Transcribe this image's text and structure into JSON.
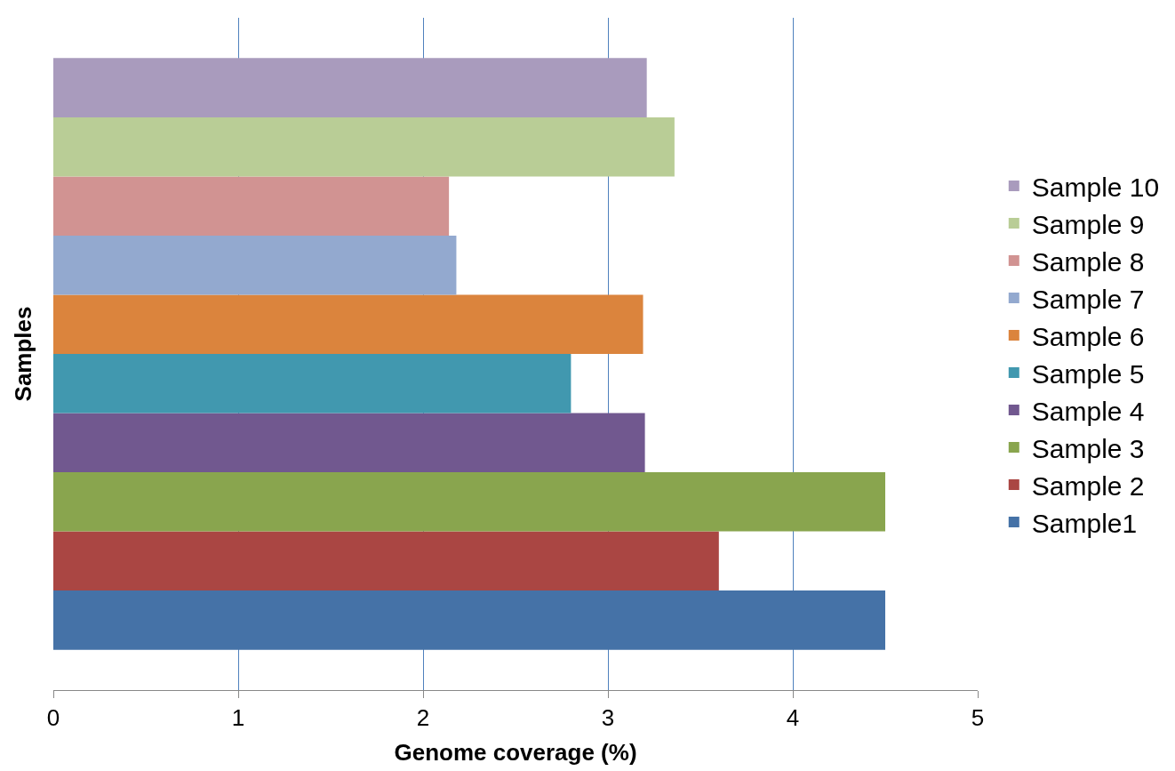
{
  "chart_data": {
    "type": "bar",
    "orientation": "horizontal",
    "xlabel": "Genome coverage (%)",
    "ylabel": "Samples",
    "categories": [
      null
    ],
    "series": [
      {
        "name": "Sample1",
        "color": "#4572a7",
        "values": [
          4.5
        ]
      },
      {
        "name": "Sample 2",
        "color": "#aa4643",
        "values": [
          3.6
        ]
      },
      {
        "name": "Sample 3",
        "color": "#89a54e",
        "values": [
          4.5
        ]
      },
      {
        "name": "Sample 4",
        "color": "#71588f",
        "values": [
          3.2
        ]
      },
      {
        "name": "Sample 5",
        "color": "#4198af",
        "values": [
          2.8
        ]
      },
      {
        "name": "Sample 6",
        "color": "#db843d",
        "values": [
          3.19
        ]
      },
      {
        "name": "Sample 7",
        "color": "#93a9cf",
        "values": [
          2.18
        ]
      },
      {
        "name": "Sample 8",
        "color": "#d19392",
        "values": [
          2.14
        ]
      },
      {
        "name": "Sample 9",
        "color": "#b9cd96",
        "values": [
          3.36
        ]
      },
      {
        "name": "Sample 10",
        "color": "#a99bbd",
        "values": [
          3.21
        ]
      }
    ],
    "xlim": [
      0,
      5
    ],
    "xticks": [
      0,
      1,
      2,
      3,
      4,
      5
    ],
    "grid": "x",
    "legend": "right",
    "tick_labels": "x"
  }
}
